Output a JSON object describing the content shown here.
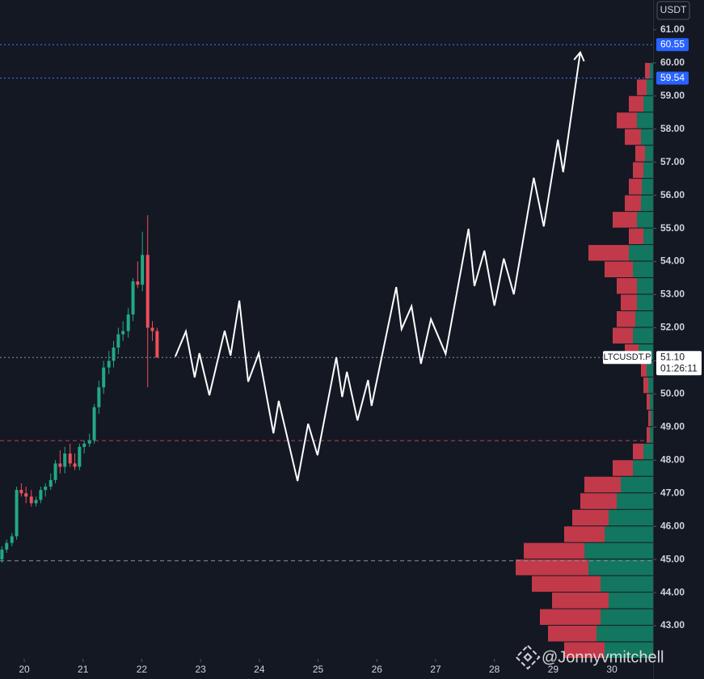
{
  "chart_data": {
    "type": "candlestick",
    "currency": "USDT",
    "symbol": "LTCUSDT.P",
    "last_price": {
      "value": 51.1,
      "label": "51.10"
    },
    "countdown": "01:26:11",
    "watermark": "@Jonnyvmitchell",
    "up_color": "#22a884",
    "down_color": "#ef4f5a",
    "x": [
      19.62,
      19.7,
      19.79,
      19.87,
      19.95,
      20.03,
      20.12,
      20.2,
      20.28,
      20.36,
      20.45,
      20.53,
      20.61,
      20.69,
      20.78,
      20.86,
      20.94,
      21.02,
      21.11,
      21.19,
      21.27,
      21.35,
      21.44,
      21.52,
      21.6,
      21.68,
      21.77,
      21.85,
      21.93,
      22.01,
      22.1,
      22.18,
      22.26
    ],
    "open": [
      45.0,
      45.3,
      45.5,
      45.7,
      47.1,
      47.0,
      46.9,
      46.7,
      46.8,
      47.1,
      47.2,
      47.4,
      47.9,
      47.8,
      48.2,
      47.9,
      47.8,
      48.4,
      48.5,
      48.6,
      49.6,
      50.2,
      50.8,
      51.0,
      51.4,
      51.8,
      51.9,
      52.4,
      53.4,
      53.3,
      54.2,
      52.0,
      51.9
    ],
    "high": [
      45.4,
      45.6,
      45.8,
      47.2,
      47.3,
      47.2,
      47.1,
      46.9,
      47.2,
      47.3,
      47.6,
      48.0,
      48.3,
      48.4,
      48.5,
      48.2,
      48.5,
      48.6,
      48.8,
      49.7,
      50.4,
      51.0,
      51.3,
      51.6,
      52.0,
      52.2,
      52.6,
      53.5,
      54.0,
      54.9,
      55.4,
      52.2,
      52.0
    ],
    "low": [
      44.9,
      45.2,
      45.4,
      45.6,
      46.9,
      46.7,
      46.6,
      46.6,
      46.7,
      46.9,
      47.1,
      47.3,
      47.6,
      47.6,
      47.8,
      47.7,
      47.7,
      48.2,
      48.4,
      48.5,
      49.4,
      50.0,
      50.6,
      50.8,
      51.2,
      51.6,
      51.7,
      52.2,
      53.2,
      53.1,
      50.2,
      51.6,
      51.1
    ],
    "close": [
      45.3,
      45.5,
      45.7,
      47.1,
      47.0,
      46.9,
      46.7,
      46.8,
      47.1,
      47.2,
      47.4,
      47.9,
      47.8,
      48.2,
      47.9,
      47.8,
      48.4,
      48.5,
      48.6,
      49.6,
      50.2,
      50.8,
      51.0,
      51.4,
      51.8,
      51.9,
      52.4,
      53.4,
      53.3,
      54.2,
      52.0,
      51.9,
      51.1
    ],
    "projection": {
      "color": "#ffffff",
      "x": [
        22.57,
        22.75,
        22.9,
        22.98,
        23.15,
        23.41,
        23.51,
        23.66,
        23.81,
        23.99,
        24.24,
        24.33,
        24.65,
        24.83,
        24.99,
        25.31,
        25.41,
        25.49,
        25.67,
        25.85,
        25.91,
        26.33,
        26.42,
        26.59,
        26.75,
        26.92,
        27.17,
        27.56,
        27.66,
        27.83,
        28.0,
        28.16,
        28.33,
        28.67,
        28.84,
        29.08,
        29.17,
        29.46
      ],
      "values": [
        51.13,
        51.89,
        50.5,
        51.23,
        49.96,
        51.91,
        51.16,
        52.82,
        50.37,
        51.23,
        48.81,
        49.79,
        47.37,
        49.1,
        48.15,
        51.11,
        49.91,
        50.67,
        49.2,
        50.42,
        49.64,
        53.23,
        51.96,
        52.65,
        50.91,
        52.26,
        51.21,
        54.99,
        53.26,
        54.33,
        52.67,
        54.09,
        53.01,
        56.53,
        55.06,
        57.68,
        56.7,
        60.32
      ]
    },
    "volume_profile": {
      "buy_color": "#13765f",
      "sell_color": "#c23a4a",
      "bins": [
        42.0,
        42.5,
        43.0,
        43.5,
        44.0,
        44.5,
        45.0,
        45.5,
        46.0,
        46.5,
        47.0,
        47.5,
        48.0,
        48.5,
        49.0,
        49.5,
        50.0,
        50.5,
        51.0,
        51.5,
        52.0,
        52.5,
        53.0,
        53.5,
        54.0,
        54.5,
        55.0,
        55.5,
        56.0,
        56.5,
        57.0,
        57.5,
        58.0,
        58.5,
        59.0,
        59.5,
        60.0
      ],
      "buy": [
        60,
        70,
        65,
        55,
        65,
        80,
        85,
        60,
        55,
        45,
        40,
        25,
        12,
        4,
        3,
        4,
        6,
        8,
        18,
        25,
        22,
        20,
        20,
        25,
        30,
        12,
        20,
        15,
        14,
        12,
        10,
        15,
        20,
        12,
        8,
        4
      ],
      "sell": [
        50,
        60,
        75,
        70,
        85,
        90,
        75,
        50,
        45,
        45,
        45,
        25,
        13,
        4,
        3,
        4,
        6,
        7,
        17,
        25,
        23,
        20,
        25,
        35,
        50,
        18,
        30,
        20,
        16,
        13,
        12,
        20,
        25,
        18,
        12,
        6
      ]
    },
    "levels": [
      {
        "value": 60.55,
        "color": "#3d7bff",
        "style": "dotted"
      },
      {
        "value": 59.54,
        "color": "#3d7bff",
        "style": "dotted"
      },
      {
        "value": 51.1,
        "color": "#8a8f9c",
        "style": "dotted"
      },
      {
        "value": 48.59,
        "color": "#b8454f",
        "style": "dashed"
      },
      {
        "value": 44.96,
        "color": "#8a8f9c",
        "style": "dashed"
      }
    ],
    "price_tags": [
      60.55,
      59.54
    ],
    "xlim": [
      19.587,
      30.7
    ],
    "ylim": [
      42.0,
      61.9
    ],
    "xticks": [
      20,
      21,
      22,
      23,
      24,
      25,
      26,
      27,
      28,
      29,
      30
    ],
    "yticks": [
      {
        "value": 43,
        "label": "43.00"
      },
      {
        "value": 44,
        "label": "44.00"
      },
      {
        "value": 45,
        "label": "45.00"
      },
      {
        "value": 46,
        "label": "46.00"
      },
      {
        "value": 47,
        "label": "47.00"
      },
      {
        "value": 48,
        "label": "48.00"
      },
      {
        "value": 49,
        "label": "49.00"
      },
      {
        "value": 50,
        "label": "50.00"
      },
      {
        "value": 51,
        "label": "51.00"
      },
      {
        "value": 52,
        "label": "52.00"
      },
      {
        "value": 53,
        "label": "53.00"
      },
      {
        "value": 54,
        "label": "54.00"
      },
      {
        "value": 55,
        "label": "55.00"
      },
      {
        "value": 56,
        "label": "56.00"
      },
      {
        "value": 57,
        "label": "57.00"
      },
      {
        "value": 58,
        "label": "58.00"
      },
      {
        "value": 59,
        "label": "59.00"
      },
      {
        "value": 60,
        "label": "60.00"
      },
      {
        "value": 61,
        "label": "61.00"
      }
    ]
  }
}
